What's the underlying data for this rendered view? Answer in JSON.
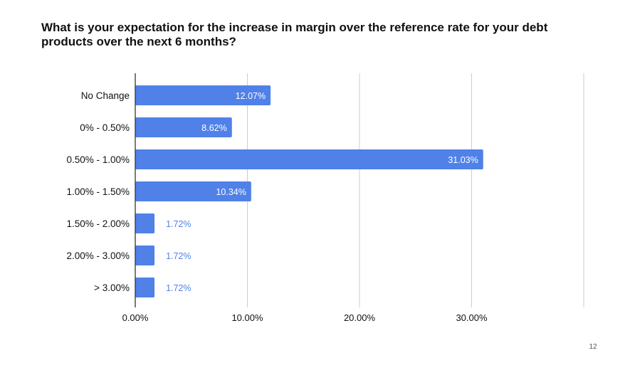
{
  "slide": {
    "title": "What is your expectation for the increase in margin over the reference rate for your debt products over the next 6 months?",
    "page_number": "12"
  },
  "colors": {
    "bar": "#4F81E8",
    "label_inside": "#ffffff",
    "label_outside": "#4F81E8",
    "grid": "#cccccc",
    "axis": "#333333"
  },
  "chart_data": {
    "type": "bar",
    "orientation": "horizontal",
    "title": "What is your expectation for the increase in margin over the reference rate for your debt products over the next 6 months?",
    "categories": [
      "No Change",
      "0% - 0.50%",
      "0.50% - 1.00%",
      "1.00% - 1.50%",
      "1.50% - 2.00%",
      "2.00% - 3.00%",
      "> 3.00%"
    ],
    "values": [
      12.07,
      8.62,
      31.03,
      10.34,
      1.72,
      1.72,
      1.72
    ],
    "data_labels": [
      "12.07%",
      "8.62%",
      "31.03%",
      "10.34%",
      "1.72%",
      "1.72%",
      "1.72%"
    ],
    "xlim": [
      0,
      40
    ],
    "xticks": [
      0,
      10,
      20,
      30,
      40
    ],
    "xtick_labels": [
      "0.00%",
      "10.00%",
      "20.00%",
      "30.00%",
      ""
    ],
    "xlabel": "",
    "ylabel": "",
    "grid": true,
    "legend": "none"
  }
}
